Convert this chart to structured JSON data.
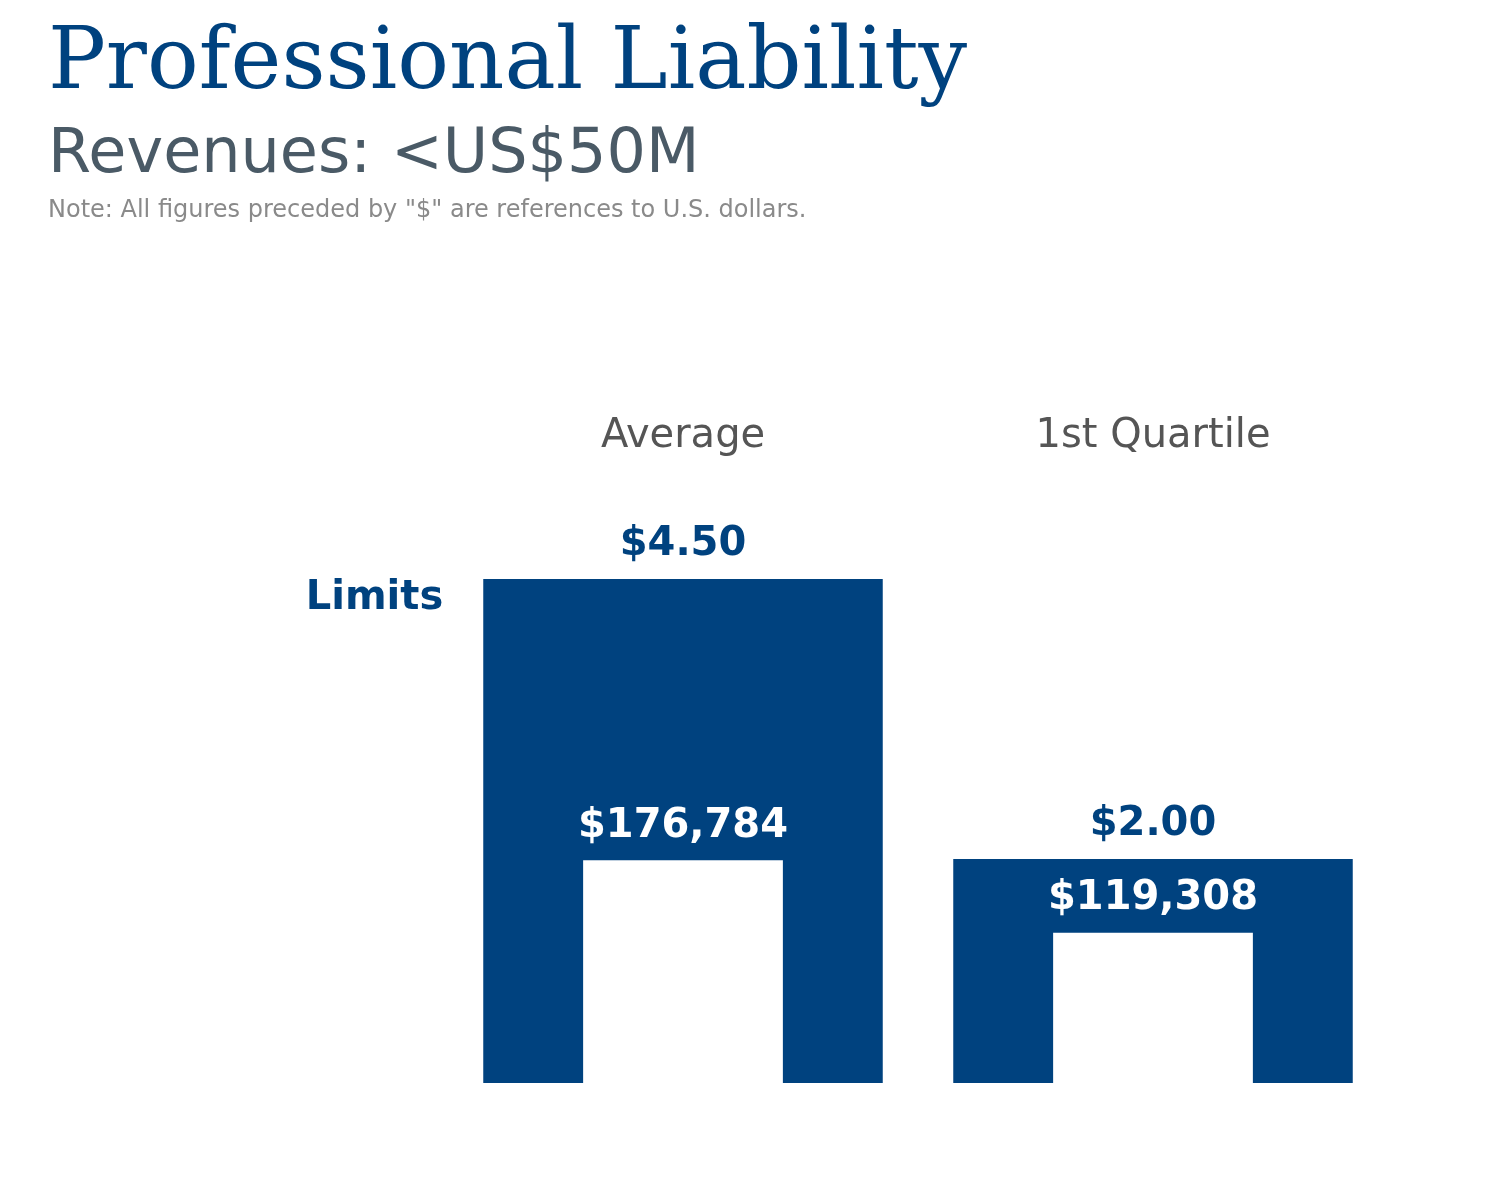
{
  "chart_data": {
    "type": "bar",
    "title": "Professional Liability",
    "subtitle": "Revenues: <US$50M",
    "annotations": [
      "Note: All figures preceded by \"$\" are references to U.S. dollars."
    ],
    "categories": [
      "Average",
      "1st Quartile"
    ],
    "series": [
      {
        "name": "Limits",
        "color": "#00427f",
        "values": [
          4.5,
          2.0
        ],
        "value_labels": [
          "$4.50",
          "$2.00"
        ]
      },
      {
        "axis": "y2",
        "color": "#ffffff",
        "values": [
          176784,
          119308
        ],
        "value_labels": [
          "$176,784",
          "$119,308"
        ]
      }
    ],
    "grid": false,
    "legend": false
  }
}
